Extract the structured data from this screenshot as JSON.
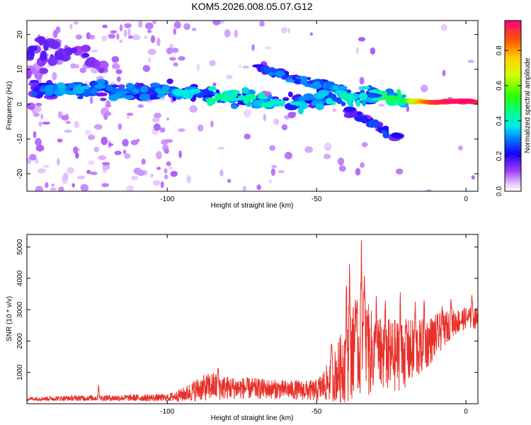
{
  "title": "KOM5.2026.008.05.07.G12",
  "chart_data": [
    {
      "type": "heatmap",
      "xlabel": "Height of straight line (km)",
      "ylabel": "Frequency (Hz)",
      "xlim": [
        -147,
        4
      ],
      "ylim": [
        -25,
        24
      ],
      "xticks": [
        -100,
        -50,
        0
      ],
      "yticks": [
        -20,
        -10,
        0,
        10,
        20
      ],
      "colorbar": {
        "label": "Normalized spectral amplitude",
        "range": [
          0,
          0.97
        ],
        "ticks": [
          0.0,
          0.2,
          0.4,
          0.6,
          0.8
        ]
      },
      "main_band": [
        {
          "x": -145,
          "f": 4,
          "a": 0.25
        },
        {
          "x": -135,
          "f": 4.5,
          "a": 0.3
        },
        {
          "x": -125,
          "f": 4,
          "a": 0.3
        },
        {
          "x": -115,
          "f": 3.5,
          "a": 0.28
        },
        {
          "x": -100,
          "f": 4,
          "a": 0.3
        },
        {
          "x": -90,
          "f": 3,
          "a": 0.38
        },
        {
          "x": -80,
          "f": 2,
          "a": 0.42
        },
        {
          "x": -70,
          "f": 1,
          "a": 0.38
        },
        {
          "x": -60,
          "f": 0,
          "a": 0.35
        },
        {
          "x": -50,
          "f": 1.5,
          "a": 0.3
        },
        {
          "x": -45,
          "f": 1.5,
          "a": 0.35
        },
        {
          "x": -40,
          "f": 1.5,
          "a": 0.38
        },
        {
          "x": -30,
          "f": 3,
          "a": 0.38
        },
        {
          "x": -25,
          "f": 2,
          "a": 0.45
        },
        {
          "x": -20,
          "f": 1,
          "a": 0.5
        },
        {
          "x": -15,
          "f": 0.8,
          "a": 0.8
        },
        {
          "x": -10,
          "f": 0.5,
          "a": 0.92
        },
        {
          "x": -5,
          "f": 0.8,
          "a": 0.95
        },
        {
          "x": 0,
          "f": 0.8,
          "a": 0.97
        },
        {
          "x": 4,
          "f": 0.6,
          "a": 0.9
        }
      ],
      "upper_branch": [
        {
          "x": -70,
          "f": 11,
          "a": 0.2
        },
        {
          "x": -65,
          "f": 9,
          "a": 0.28
        },
        {
          "x": -60,
          "f": 8,
          "a": 0.3
        },
        {
          "x": -55,
          "f": 7,
          "a": 0.28
        },
        {
          "x": -50,
          "f": 6,
          "a": 0.3
        },
        {
          "x": -45,
          "f": 5,
          "a": 0.32
        },
        {
          "x": -40,
          "f": 3,
          "a": 0.3
        }
      ],
      "lower_branch": [
        {
          "x": -40,
          "f": -2,
          "a": 0.2
        },
        {
          "x": -35,
          "f": -4,
          "a": 0.22
        },
        {
          "x": -30,
          "f": -6,
          "a": 0.25
        },
        {
          "x": -25,
          "f": -9,
          "a": 0.25
        },
        {
          "x": -22,
          "f": -10,
          "a": 0.2
        }
      ],
      "side_lobes": [
        {
          "x": -145,
          "f": 14,
          "a": 0.18
        },
        {
          "x": -140,
          "f": 18,
          "a": 0.15
        },
        {
          "x": -135,
          "f": 13,
          "a": 0.15
        },
        {
          "x": -130,
          "f": 15,
          "a": 0.15
        },
        {
          "x": -125,
          "f": 11,
          "a": 0.12
        },
        {
          "x": -145,
          "f": 9,
          "a": 0.12
        }
      ]
    },
    {
      "type": "line",
      "xlabel": "Height of straight line (km)",
      "ylabel": "SNR (10 * v/v)",
      "xlim": [
        -147,
        4
      ],
      "ylim": [
        0,
        5400
      ],
      "xticks": [
        -100,
        -50,
        0
      ],
      "yticks": [
        1000,
        2000,
        3000,
        4000,
        5000
      ],
      "color": "#e8302a",
      "envelope": {
        "x": [
          -147,
          -130,
          -110,
          -100,
          -95,
          -90,
          -85,
          -80,
          -70,
          -60,
          -50,
          -45,
          -42,
          -40,
          -38,
          -36,
          -34,
          -32,
          -30,
          -25,
          -20,
          -15,
          -10,
          -5,
          0,
          4
        ],
        "base": [
          150,
          170,
          180,
          180,
          260,
          420,
          520,
          470,
          450,
          420,
          380,
          700,
          1000,
          1300,
          1500,
          1600,
          1600,
          1500,
          1400,
          1400,
          1500,
          1700,
          2100,
          2500,
          2700,
          2700
        ],
        "amp": [
          60,
          90,
          110,
          120,
          220,
          380,
          460,
          380,
          330,
          300,
          350,
          700,
          1100,
          1400,
          1500,
          1600,
          1700,
          1400,
          1300,
          1200,
          1100,
          900,
          700,
          450,
          350,
          350
        ]
      },
      "peaks": [
        {
          "x": -123,
          "y": 600
        },
        {
          "x": -83,
          "y": 1200
        },
        {
          "x": -45,
          "y": 2100
        },
        {
          "x": -40,
          "y": 3900
        },
        {
          "x": -39,
          "y": 4500
        },
        {
          "x": -37,
          "y": 3400
        },
        {
          "x": -35,
          "y": 5400
        },
        {
          "x": -34,
          "y": 4200
        },
        {
          "x": -33,
          "y": 3000
        },
        {
          "x": -30,
          "y": 3500
        },
        {
          "x": -27,
          "y": 3300
        },
        {
          "x": -22,
          "y": 3600
        },
        {
          "x": -20,
          "y": 2600
        },
        {
          "x": -17,
          "y": 3300
        },
        {
          "x": -14,
          "y": 3400
        },
        {
          "x": -8,
          "y": 3100
        },
        {
          "x": -5,
          "y": 3400
        },
        {
          "x": 2,
          "y": 3500
        }
      ]
    }
  ]
}
